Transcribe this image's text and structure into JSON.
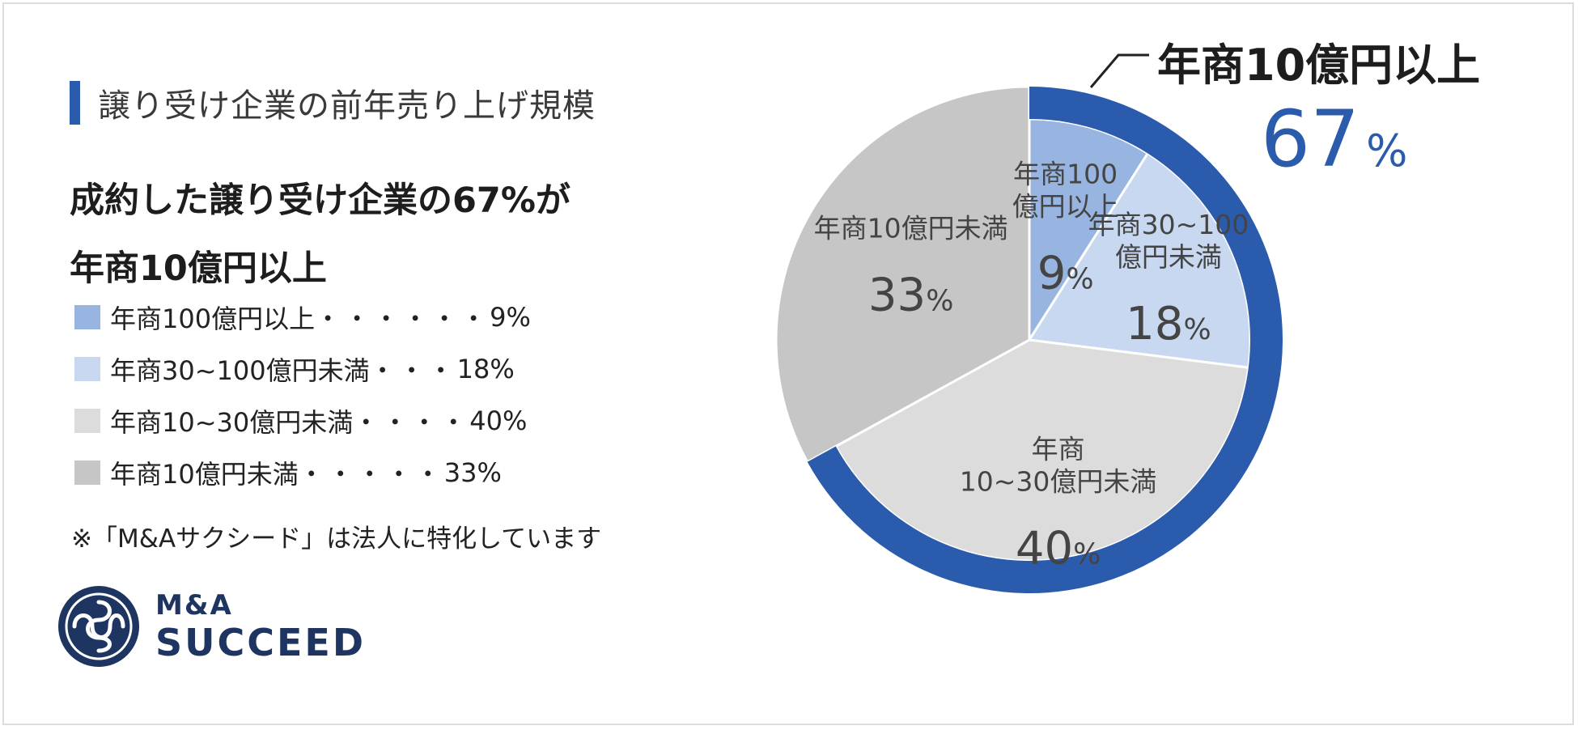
{
  "section_title": "譲り受け企業の前年売り上げ規模",
  "headline": {
    "line1": "成約した譲り受け企業の67%が",
    "line2": "年商10億円以上"
  },
  "legend": [
    {
      "label": "年商100億円以上",
      "dots": "・・・・・・",
      "value": "9%"
    },
    {
      "label": "年商30~100億円未満",
      "dots": "・・・",
      "value": "18%"
    },
    {
      "label": "年商10~30億円未満",
      "dots": "・・・・",
      "value": "40%"
    },
    {
      "label": "年商10億円未満",
      "dots": "・・・・・",
      "value": "33%"
    }
  ],
  "note": "※「M&Aサクシード」は法人に特化しています",
  "logo": {
    "line1": "M&A",
    "line2": "SUCCEED"
  },
  "callout": {
    "title": "年商10億円以上",
    "value": "67",
    "unit": "%"
  },
  "colors": {
    "accent": "#2b5bac",
    "slice_100plus": "#98b4e0",
    "slice_30_100": "#c8d8f0",
    "slice_10_30": "#dcdcdc",
    "slice_under10": "#c6c6c6",
    "logo": "#1f3561"
  },
  "chart_data": {
    "type": "pie",
    "title": "",
    "slices": [
      {
        "name": "年商100億円以上",
        "chart_label": [
          "年商100",
          "億円以上"
        ],
        "value": 9,
        "value_text": "9",
        "pct_text": "%",
        "color": "#98b4e0"
      },
      {
        "name": "年商30~100億円未満",
        "chart_label": [
          "年商30~100",
          "億円未満"
        ],
        "value": 18,
        "value_text": "18",
        "pct_text": "%",
        "color": "#c8d8f0"
      },
      {
        "name": "年商10~30億円未満",
        "chart_label": [
          "年商",
          "10~30億円未満"
        ],
        "value": 40,
        "value_text": "40",
        "pct_text": "%",
        "color": "#dcdcdc"
      },
      {
        "name": "年商10億円未満",
        "chart_label": [
          "年商10億円未満"
        ],
        "value": 33,
        "value_text": "33",
        "pct_text": "%",
        "color": "#c6c6c6"
      }
    ],
    "highlight_group": {
      "label": "年商10億円以上",
      "value": 67
    }
  }
}
